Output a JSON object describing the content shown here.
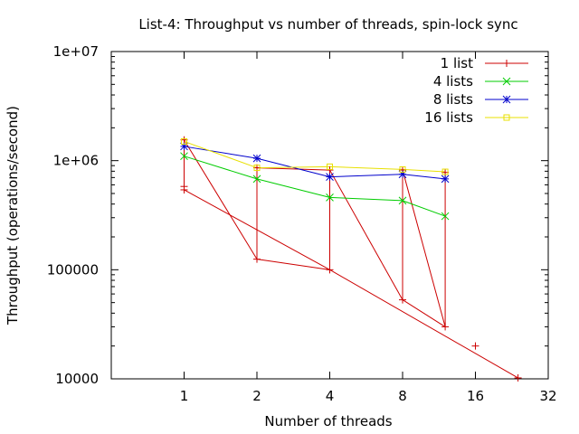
{
  "chart_data": {
    "type": "line",
    "title": "List-4: Throughput vs number of threads, spin-lock sync",
    "xlabel": "Number of threads",
    "ylabel": "Throughput (operations/second)",
    "x_scale": "log2",
    "y_scale": "log10",
    "xlim": [
      0.5,
      32
    ],
    "ylim": [
      10000,
      10000000
    ],
    "x_ticks": [
      1,
      2,
      4,
      8,
      16,
      32
    ],
    "x_tick_labels": [
      "1",
      "2",
      "4",
      "8",
      "16",
      "32"
    ],
    "y_ticks": [
      10000,
      100000,
      1000000,
      10000000
    ],
    "y_tick_labels": [
      "10000",
      "100000",
      "1e+06",
      "1e+07"
    ],
    "legend_position": "top-right",
    "grid": false,
    "series": [
      {
        "name": "1 list",
        "color": "#cc0000",
        "marker": "plus",
        "points": [
          [
            1,
            1550000
          ],
          [
            1,
            580000
          ],
          [
            1,
            540000
          ],
          [
            2,
            125000
          ],
          [
            2,
            860000
          ],
          [
            4,
            100000
          ],
          [
            4,
            820000
          ],
          [
            8,
            53000
          ],
          [
            8,
            820000
          ],
          [
            12,
            30000
          ],
          [
            12,
            780000
          ],
          [
            16,
            20000
          ],
          [
            24,
            10200
          ]
        ],
        "segments": [
          [
            [
              1,
              1550000
            ],
            [
              1,
              540000
            ]
          ],
          [
            [
              1,
              1550000
            ],
            [
              2,
              125000
            ]
          ],
          [
            [
              1,
              540000
            ],
            [
              4,
              100000
            ]
          ],
          [
            [
              2,
              125000
            ],
            [
              4,
              100000
            ]
          ],
          [
            [
              2,
              860000
            ],
            [
              2,
              125000
            ]
          ],
          [
            [
              2,
              860000
            ],
            [
              4,
              820000
            ]
          ],
          [
            [
              4,
              820000
            ],
            [
              4,
              100000
            ]
          ],
          [
            [
              4,
              820000
            ],
            [
              8,
              53000
            ]
          ],
          [
            [
              4,
              100000
            ],
            [
              24,
              10200
            ]
          ],
          [
            [
              8,
              53000
            ],
            [
              12,
              30000
            ]
          ],
          [
            [
              8,
              820000
            ],
            [
              8,
              53000
            ]
          ],
          [
            [
              8,
              820000
            ],
            [
              12,
              30000
            ]
          ],
          [
            [
              12,
              780000
            ],
            [
              12,
              30000
            ]
          ]
        ]
      },
      {
        "name": "4 lists",
        "color": "#00cc00",
        "marker": "cross",
        "points": [
          [
            1,
            1100000
          ],
          [
            2,
            680000
          ],
          [
            4,
            460000
          ],
          [
            8,
            430000
          ],
          [
            12,
            310000
          ]
        ],
        "segments": [
          [
            [
              1,
              1100000
            ],
            [
              2,
              680000
            ]
          ],
          [
            [
              2,
              680000
            ],
            [
              4,
              460000
            ]
          ],
          [
            [
              4,
              460000
            ],
            [
              8,
              430000
            ]
          ],
          [
            [
              8,
              430000
            ],
            [
              12,
              310000
            ]
          ]
        ]
      },
      {
        "name": "8 lists",
        "color": "#0000cc",
        "marker": "star",
        "points": [
          [
            1,
            1350000
          ],
          [
            2,
            1050000
          ],
          [
            4,
            710000
          ],
          [
            8,
            750000
          ],
          [
            12,
            680000
          ]
        ],
        "segments": [
          [
            [
              1,
              1350000
            ],
            [
              2,
              1050000
            ]
          ],
          [
            [
              2,
              1050000
            ],
            [
              4,
              710000
            ]
          ],
          [
            [
              4,
              710000
            ],
            [
              8,
              750000
            ]
          ],
          [
            [
              8,
              750000
            ],
            [
              12,
              680000
            ]
          ]
        ]
      },
      {
        "name": "16 lists",
        "color": "#e8e000",
        "marker": "box",
        "points": [
          [
            1,
            1500000
          ],
          [
            2,
            860000
          ],
          [
            4,
            880000
          ],
          [
            8,
            830000
          ],
          [
            12,
            790000
          ]
        ],
        "segments": [
          [
            [
              1,
              1500000
            ],
            [
              2,
              860000
            ]
          ],
          [
            [
              2,
              860000
            ],
            [
              4,
              880000
            ]
          ],
          [
            [
              4,
              880000
            ],
            [
              8,
              830000
            ]
          ],
          [
            [
              8,
              830000
            ],
            [
              12,
              790000
            ]
          ]
        ]
      }
    ]
  }
}
